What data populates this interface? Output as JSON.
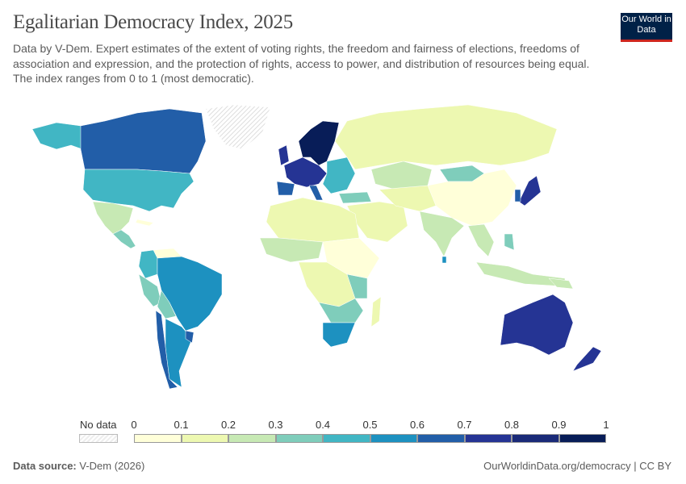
{
  "header": {
    "title": "Egalitarian Democracy Index, 2025",
    "subtitle": "Data by V-Dem. Expert estimates of the extent of voting rights, the freedom and fairness of elections, freedoms of association and expression, and the protection of rights, access to power, and distribution of resources being equal. The index ranges from 0 to 1 (most democratic).",
    "logo": "Our World in Data"
  },
  "legend": {
    "no_data_label": "No data",
    "ticks": [
      "0",
      "0.1",
      "0.2",
      "0.3",
      "0.4",
      "0.5",
      "0.6",
      "0.7",
      "0.8",
      "0.9",
      "1"
    ],
    "bin_colors": [
      "#ffffd9",
      "#edf8b1",
      "#c7e9b4",
      "#7fcdbb",
      "#41b6c4",
      "#1d91c0",
      "#225ea8",
      "#253494",
      "#1a2a78",
      "#081d58"
    ]
  },
  "footer": {
    "source_label": "Data source:",
    "source": "V-Dem (2026)",
    "url_license": "OurWorldinData.org/democracy | CC BY"
  },
  "colors": {
    "logo_bg": "#002147",
    "logo_accent": "#ce261e",
    "no_data": "hatched-gray"
  }
}
